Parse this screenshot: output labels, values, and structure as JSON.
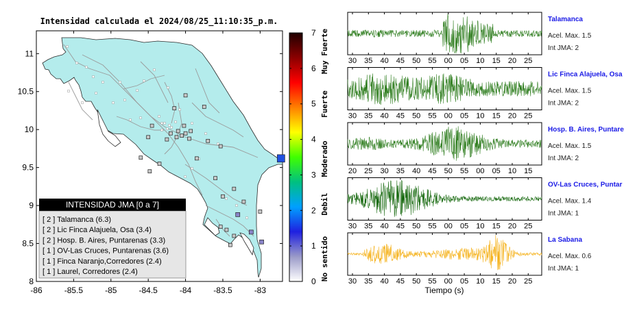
{
  "map": {
    "title": "Intensidad calculada el 2024/08/25_11:10:35_p.m.",
    "lat_ticks": [
      "11",
      "10.5",
      "10",
      "9.5",
      "9",
      "8.5",
      "8"
    ],
    "lon_ticks": [
      "-86",
      "-85.5",
      "-85",
      "-84.5",
      "-84",
      "-83.5",
      "-83"
    ],
    "lat_range": [
      8,
      11.3
    ],
    "lon_range": [
      -86,
      -82.7
    ],
    "legend": {
      "header": "INTENSIDAD JMA [0 a 7]",
      "items": [
        "[ 2 ]  Talamanca (6.3)",
        "[ 2 ]  Lic Finca Alajuela, Osa (3.4)",
        "[ 2 ]  Hosp. B. Aires, Puntarenas (3.3)",
        "[ 1 ]  OV-Las Cruces, Puntarenas (3.6)",
        "[ 1 ]  Finca Naranjo,Corredores (2.4)",
        "[ 1 ]  Laurel, Corredores (2.4)"
      ]
    }
  },
  "colorbar": {
    "ticks": [
      "0",
      "1",
      "2",
      "3",
      "4",
      "5",
      "6",
      "7"
    ],
    "labels": [
      "No sentido",
      "Debil",
      "Moderado",
      "Fuerte",
      "Muy Fuerte"
    ],
    "colors": [
      "#ffffff",
      "#9a9ac8",
      "#1f20e0",
      "#00a0ff",
      "#00c080",
      "#40ff00",
      "#ffff00",
      "#ff8000",
      "#ff0000",
      "#8b0000",
      "#200000"
    ]
  },
  "traces": [
    {
      "station": "Talamanca",
      "accel": "Acel. Max. 1.5",
      "jma": "Int JMA: 2",
      "color": "#2e7d1e",
      "ticks": [
        "30",
        "35",
        "40",
        "45",
        "50",
        "55",
        "00",
        "05",
        "10",
        "15",
        "20",
        "25"
      ]
    },
    {
      "station": "Lic Finca Alajuela, Osa",
      "accel": "Acel. Max. 1.5",
      "jma": "Int JMA: 2",
      "color": "#2e7d1e",
      "ticks": [
        "30",
        "35",
        "40",
        "45",
        "50",
        "55",
        "00",
        "05",
        "10",
        "15",
        "20",
        "25"
      ]
    },
    {
      "station": "Hosp. B. Aires, Puntare",
      "accel": "Acel. Max. 1.5",
      "jma": "Int JMA: 2",
      "color": "#2e7d1e",
      "ticks": [
        "20",
        "25",
        "30",
        "35",
        "40",
        "45",
        "50",
        "55",
        "00",
        "05",
        "10",
        "15"
      ]
    },
    {
      "station": "OV-Las Cruces, Puntar",
      "accel": "Acel. Max. 1.4",
      "jma": "Int JMA: 1",
      "color": "#1a6b12",
      "ticks": [
        "30",
        "35",
        "40",
        "45",
        "50",
        "55",
        "00",
        "05",
        "10",
        "15",
        "20",
        "25"
      ]
    },
    {
      "station": "La Sabana",
      "accel": "Acel. Max. 0.6",
      "jma": "Int JMA: 1",
      "color": "#f5b21c",
      "ticks": [
        "30",
        "35",
        "40",
        "45",
        "50",
        "55",
        "00",
        "05",
        "10",
        "15",
        "20",
        "25"
      ]
    }
  ],
  "xlabel": "Tiempo (s)",
  "chart_data": {
    "type": "scatter",
    "title": "Intensidad calculada el 2024/08/25_11:10:35_p.m.",
    "xlabel": "",
    "ylabel": "",
    "xlim": [
      -86,
      -82.7
    ],
    "ylim": [
      8,
      11.3
    ],
    "stations": [
      {
        "name": "Talamanca",
        "pga": 6.3,
        "jma": 2
      },
      {
        "name": "Lic Finca Alajuela, Osa",
        "pga": 3.4,
        "jma": 2
      },
      {
        "name": "Hosp. B. Aires, Puntarenas",
        "pga": 3.3,
        "jma": 2
      },
      {
        "name": "OV-Las Cruces, Puntarenas",
        "pga": 3.6,
        "jma": 1
      },
      {
        "name": "Finca Naranjo,Corredores",
        "pga": 2.4,
        "jma": 1
      },
      {
        "name": "Laurel, Corredores",
        "pga": 2.4,
        "jma": 1
      }
    ],
    "map_markers": [
      {
        "lon": -82.72,
        "lat": 9.62,
        "intensity": 2
      },
      {
        "lon": -83.3,
        "lat": 8.88,
        "intensity": 1
      },
      {
        "lon": -83.12,
        "lat": 8.65,
        "intensity": 1
      },
      {
        "lon": -82.98,
        "lat": 8.52,
        "intensity": 1
      },
      {
        "lon": -83.53,
        "lat": 8.72,
        "intensity": 0.5
      },
      {
        "lon": -83.45,
        "lat": 8.68,
        "intensity": 0.5
      },
      {
        "lon": -83.35,
        "lat": 8.6,
        "intensity": 0.5
      },
      {
        "lon": -83.4,
        "lat": 8.48,
        "intensity": 0.5
      },
      {
        "lon": -83.0,
        "lat": 8.92,
        "intensity": 0.5
      },
      {
        "lon": -83.22,
        "lat": 9.05,
        "intensity": 0.5
      },
      {
        "lon": -83.6,
        "lat": 9.36,
        "intensity": 0.5
      },
      {
        "lon": -83.5,
        "lat": 9.12,
        "intensity": 0.5
      },
      {
        "lon": -83.35,
        "lat": 9.22,
        "intensity": 0.5
      },
      {
        "lon": -83.7,
        "lat": 9.85,
        "intensity": 0.5
      },
      {
        "lon": -83.53,
        "lat": 9.78,
        "intensity": 0.5
      },
      {
        "lon": -83.95,
        "lat": 9.88,
        "intensity": 0.5
      },
      {
        "lon": -84.0,
        "lat": 9.95,
        "intensity": 0.5
      },
      {
        "lon": -84.05,
        "lat": 9.92,
        "intensity": 0.5
      },
      {
        "lon": -84.1,
        "lat": 9.98,
        "intensity": 0.5
      },
      {
        "lon": -84.12,
        "lat": 9.9,
        "intensity": 0.5
      },
      {
        "lon": -84.2,
        "lat": 9.95,
        "intensity": 0.5
      },
      {
        "lon": -84.25,
        "lat": 9.87,
        "intensity": 0.5
      },
      {
        "lon": -84.02,
        "lat": 10.05,
        "intensity": 0.5
      },
      {
        "lon": -83.93,
        "lat": 9.98,
        "intensity": 0.5
      },
      {
        "lon": -84.45,
        "lat": 10.05,
        "intensity": 0.5
      },
      {
        "lon": -84.5,
        "lat": 9.9,
        "intensity": 0.5
      },
      {
        "lon": -84.0,
        "lat": 10.45,
        "intensity": 0.5
      },
      {
        "lon": -84.15,
        "lat": 10.28,
        "intensity": 0.5
      },
      {
        "lon": -83.75,
        "lat": 10.3,
        "intensity": 0.5
      },
      {
        "lon": -84.6,
        "lat": 9.63,
        "intensity": 0.5
      },
      {
        "lon": -83.85,
        "lat": 9.62,
        "intensity": 0.5
      },
      {
        "lon": -84.35,
        "lat": 9.55,
        "intensity": 0.5
      },
      {
        "lon": -84.48,
        "lat": 9.45,
        "intensity": 0.5
      }
    ],
    "waveforms": [
      {
        "station": "Talamanca",
        "acel_max": 1.5,
        "jma": 2
      },
      {
        "station": "Lic Finca Alajuela, Osa",
        "acel_max": 1.5,
        "jma": 2
      },
      {
        "station": "Hosp. B. Aires, Puntare",
        "acel_max": 1.5,
        "jma": 2
      },
      {
        "station": "OV-Las Cruces, Puntar",
        "acel_max": 1.4,
        "jma": 1
      },
      {
        "station": "La Sabana",
        "acel_max": 0.6,
        "jma": 1
      }
    ]
  }
}
